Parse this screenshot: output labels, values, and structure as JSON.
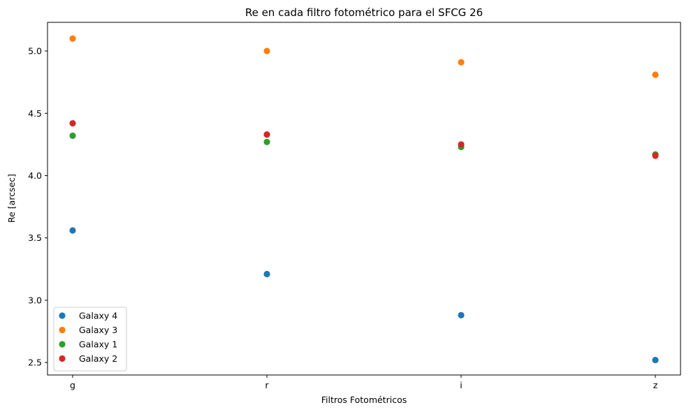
{
  "chart_data": {
    "type": "scatter",
    "title": "Re en cada filtro fotométrico para el SFCG 26",
    "xlabel": "Filtros Fotométricos",
    "ylabel": "Re [arcsec]",
    "categories": [
      "g",
      "r",
      "i",
      "z"
    ],
    "ylim": [
      2.4,
      5.23
    ],
    "yticks": [
      "2.5",
      "3.0",
      "3.5",
      "4.0",
      "4.5",
      "5.0"
    ],
    "grid": false,
    "legend_position": "bottom-left",
    "series": [
      {
        "name": "Galaxy 4",
        "color": "#1f77b4",
        "values": [
          3.56,
          3.21,
          2.88,
          2.52
        ]
      },
      {
        "name": "Galaxy 3",
        "color": "#ff7f0e",
        "values": [
          5.1,
          5.0,
          4.91,
          4.81
        ]
      },
      {
        "name": "Galaxy 1",
        "color": "#2ca02c",
        "values": [
          4.32,
          4.27,
          4.23,
          4.17
        ]
      },
      {
        "name": "Galaxy 2",
        "color": "#d62728",
        "values": [
          4.42,
          4.33,
          4.25,
          4.16
        ]
      }
    ]
  }
}
